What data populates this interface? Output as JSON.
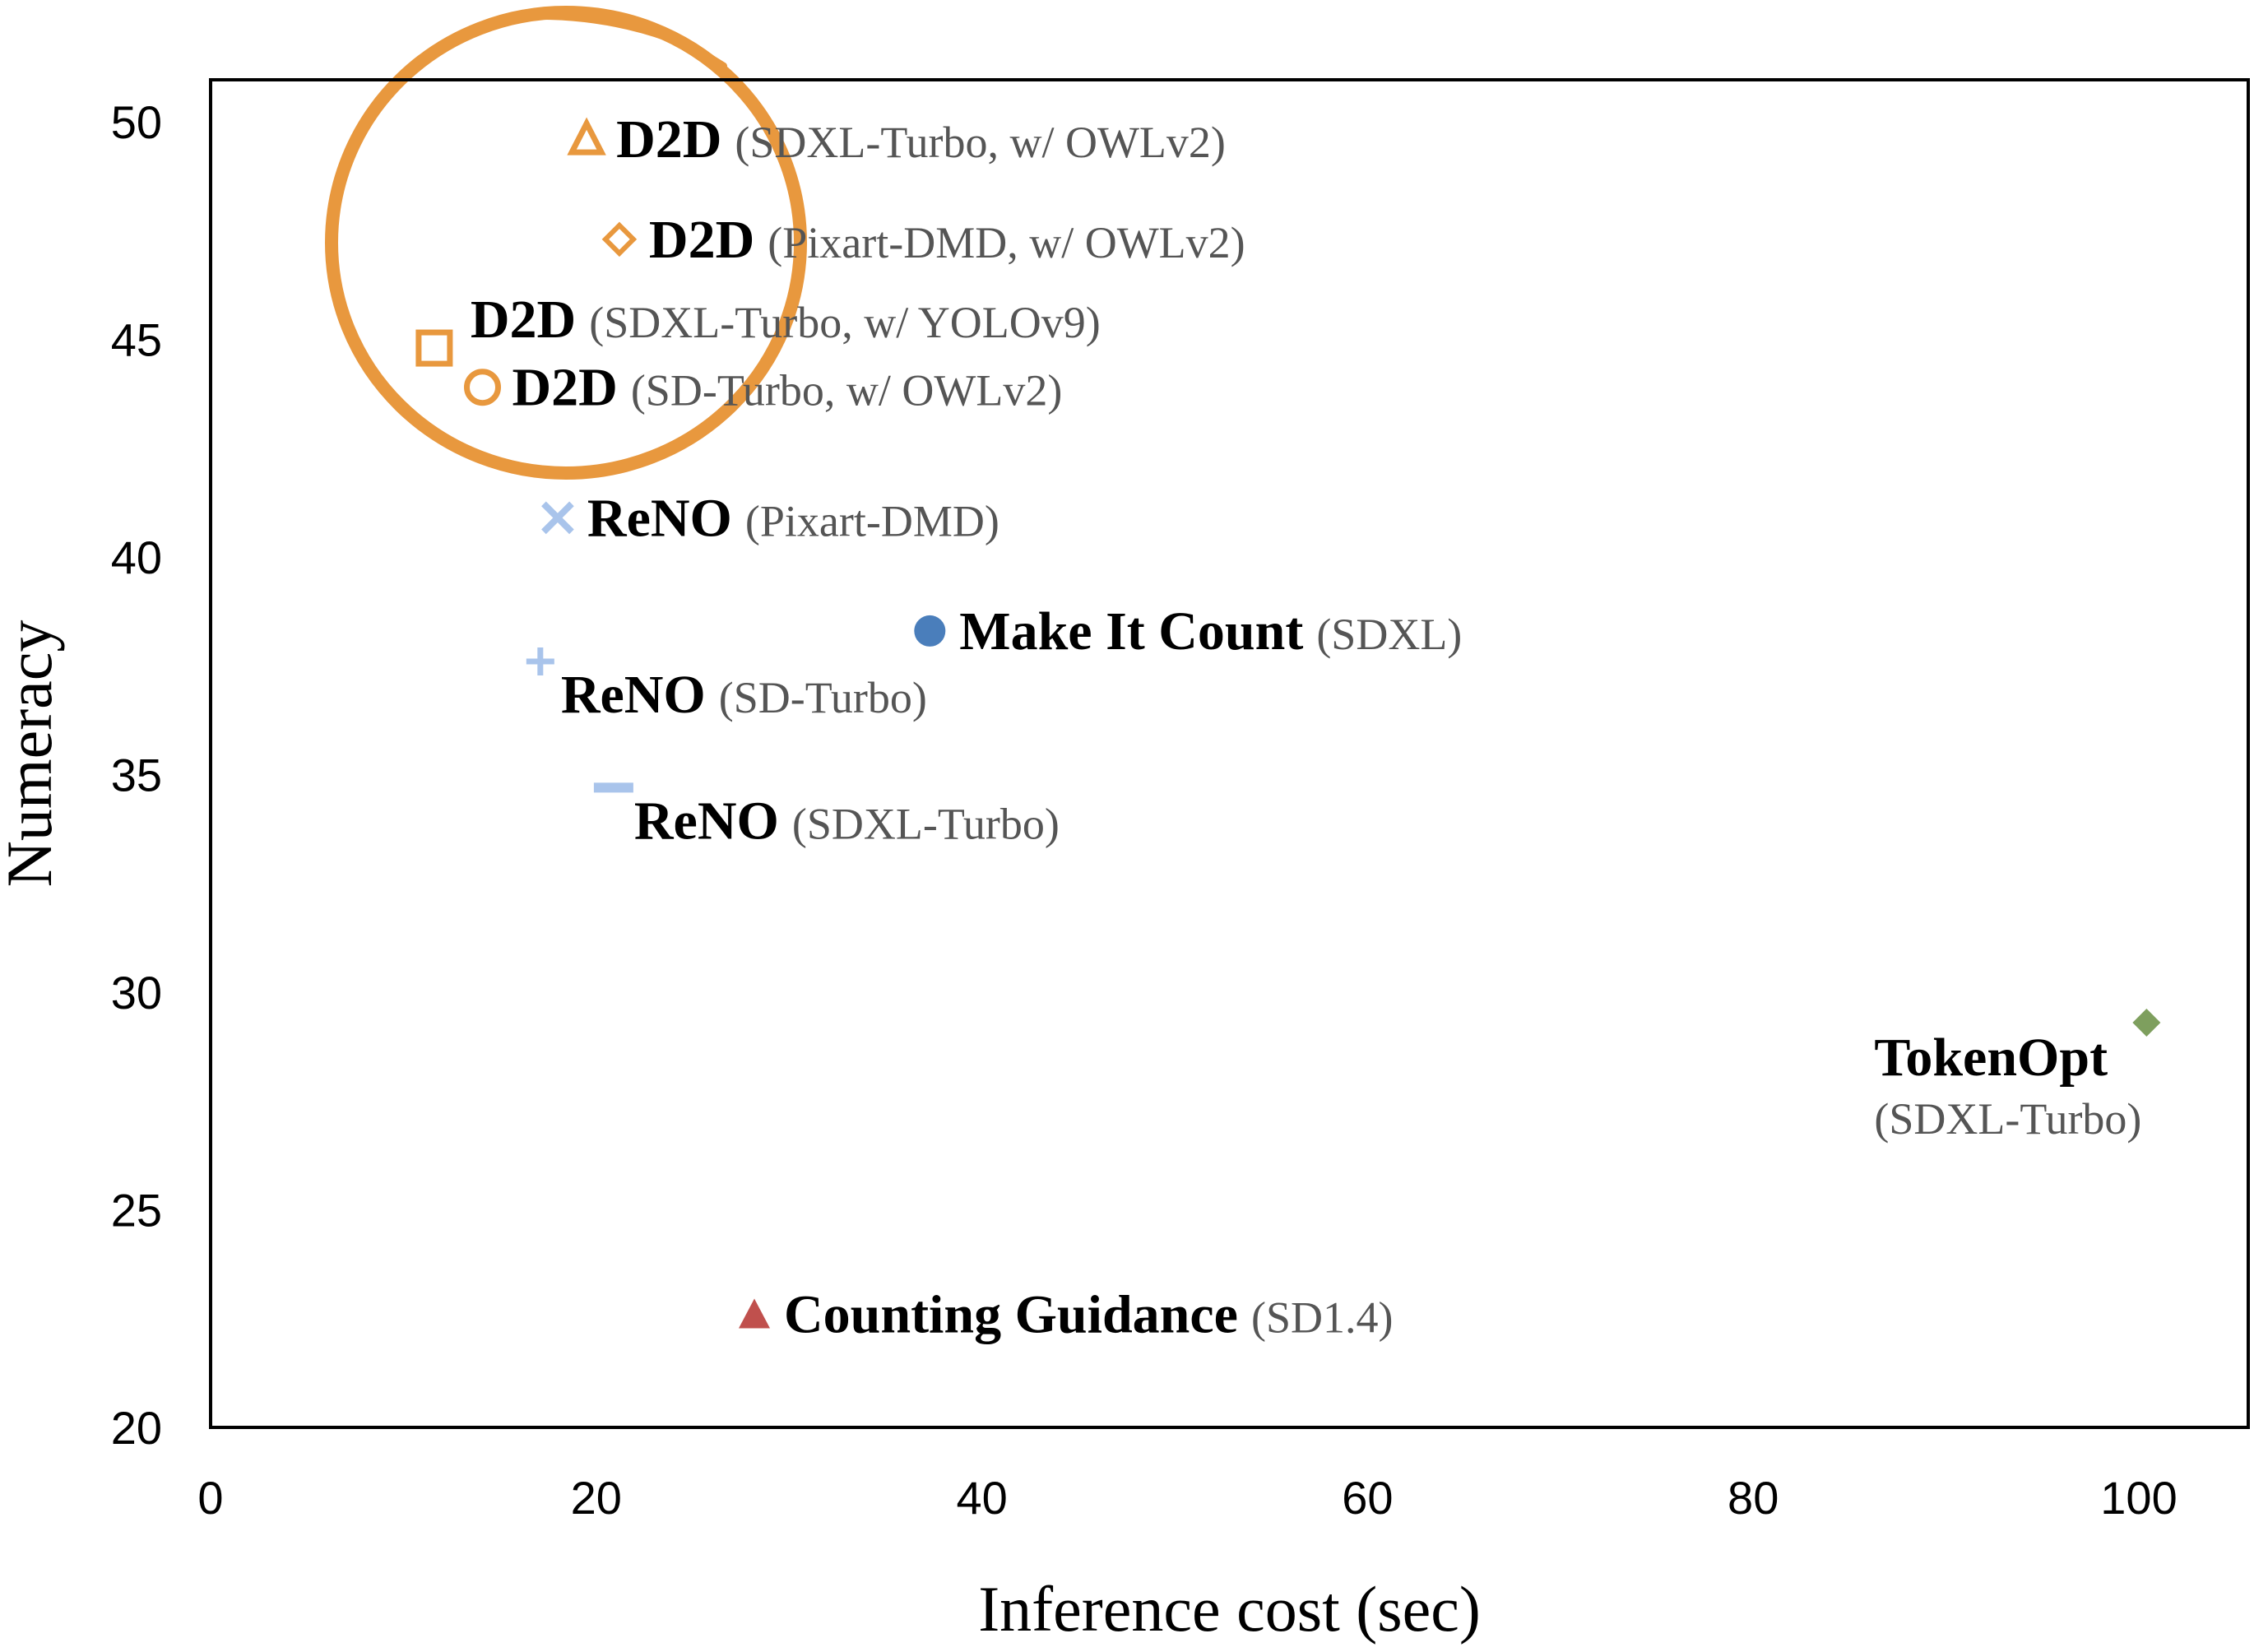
{
  "chart_data": {
    "type": "scatter",
    "title": "",
    "xlabel": "Inference cost (sec)",
    "ylabel": "Numeracy",
    "xlim": [
      0,
      105
    ],
    "ylim": [
      20,
      51
    ],
    "xticks": [
      0,
      20,
      40,
      60,
      80,
      100
    ],
    "yticks": [
      20,
      25,
      30,
      35,
      40,
      45,
      50
    ],
    "grid": false,
    "annotations": [
      {
        "shape": "circle-highlight",
        "color": "#E8983E",
        "around": [
          "D2D (SDXL-Turbo, w/ OWLv2)",
          "D2D (Pixart-DMD, w/ OWLv2)",
          "D2D (SDXL-Turbo, w/ YOLOv9)",
          "D2D (SD-Turbo, w/ OWLv2)"
        ]
      }
    ],
    "points": [
      {
        "name": "D2D",
        "model": "(SDXL-Turbo, w/ OWLv2)",
        "x": 19.5,
        "y": 49.6,
        "marker": "triangle-open",
        "color": "#E8983E",
        "label_side": "right"
      },
      {
        "name": "D2D",
        "model": "(Pixart-DMD, w/ OWLv2)",
        "x": 21.2,
        "y": 47.3,
        "marker": "diamond-open",
        "color": "#E8983E",
        "label_side": "right"
      },
      {
        "name": "D2D",
        "model": "(SDXL-Turbo, w/ YOLOv9)",
        "x": 11.6,
        "y": 44.8,
        "marker": "square-open",
        "color": "#E8983E",
        "label_side": "right-above"
      },
      {
        "name": "D2D",
        "model": "(SD-Turbo, w/ OWLv2)",
        "x": 14.1,
        "y": 43.9,
        "marker": "circle-open",
        "color": "#E8983E",
        "label_side": "right"
      },
      {
        "name": "ReNO",
        "model": "(Pixart-DMD)",
        "x": 18.0,
        "y": 40.9,
        "marker": "x",
        "color": "#A9C4EB",
        "label_side": "right"
      },
      {
        "name": "Make It Count",
        "model": "(SDXL)",
        "x": 37.3,
        "y": 38.3,
        "marker": "circle-filled",
        "color": "#4A7EBB",
        "label_side": "right"
      },
      {
        "name": "ReNO",
        "model": "(SD-Turbo)",
        "x": 17.1,
        "y": 37.6,
        "marker": "plus",
        "color": "#A9C4EB",
        "label_side": "right-below"
      },
      {
        "name": "ReNO",
        "model": "(SDXL-Turbo)",
        "x": 20.9,
        "y": 34.7,
        "marker": "dash",
        "color": "#A9C4EB",
        "label_side": "right-below"
      },
      {
        "name": "TokenOpt",
        "model": "(SDXL-Turbo)",
        "x": 100.4,
        "y": 29.3,
        "marker": "diamond-filled",
        "color": "#7E9F5E",
        "label_side": "left-below"
      },
      {
        "name": "Counting Guidance",
        "model": "(SD1.4)",
        "x": 28.2,
        "y": 22.6,
        "marker": "triangle-filled",
        "color": "#C0504D",
        "label_side": "right"
      }
    ]
  }
}
